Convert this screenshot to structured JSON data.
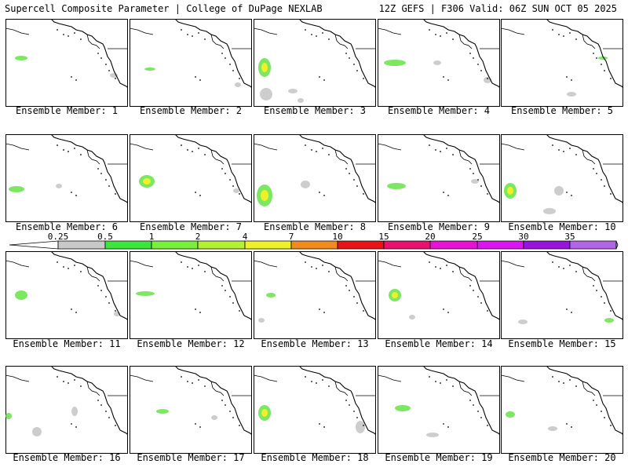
{
  "header": {
    "left": "Supercell Composite Parameter | College of DuPage NEXLAB",
    "right": "12Z GEFS | F306 Valid: 06Z SUN OCT 05 2025"
  },
  "colorbar": {
    "labels": [
      "0.25",
      "0.5",
      "1",
      "2",
      "4",
      "7",
      "10",
      "15",
      "20",
      "25",
      "30",
      "35"
    ],
    "colors": [
      "#c8c8c8",
      "#3ce63c",
      "#78f03c",
      "#b4f032",
      "#f0f028",
      "#f08c1e",
      "#e61414",
      "#e6146e",
      "#e614d2",
      "#dc14f0",
      "#9614dc",
      "#b464e6"
    ],
    "low_color": "#ffffff",
    "high_color": "#28f0f0"
  },
  "panels": [
    {
      "label": "Ensemble Member: 1"
    },
    {
      "label": "Ensemble Member: 2"
    },
    {
      "label": "Ensemble Member: 3"
    },
    {
      "label": "Ensemble Member: 4"
    },
    {
      "label": "Ensemble Member: 5"
    },
    {
      "label": "Ensemble Member: 6"
    },
    {
      "label": "Ensemble Member: 7"
    },
    {
      "label": "Ensemble Member: 8"
    },
    {
      "label": "Ensemble Member: 9"
    },
    {
      "label": "Ensemble Member: 10"
    },
    {
      "label": "Ensemble Member: 11"
    },
    {
      "label": "Ensemble Member: 12"
    },
    {
      "label": "Ensemble Member: 13"
    },
    {
      "label": "Ensemble Member: 14"
    },
    {
      "label": "Ensemble Member: 15"
    },
    {
      "label": "Ensemble Member: 16"
    },
    {
      "label": "Ensemble Member: 17"
    },
    {
      "label": "Ensemble Member: 18"
    },
    {
      "label": "Ensemble Member: 19"
    },
    {
      "label": "Ensemble Member: 20"
    }
  ]
}
